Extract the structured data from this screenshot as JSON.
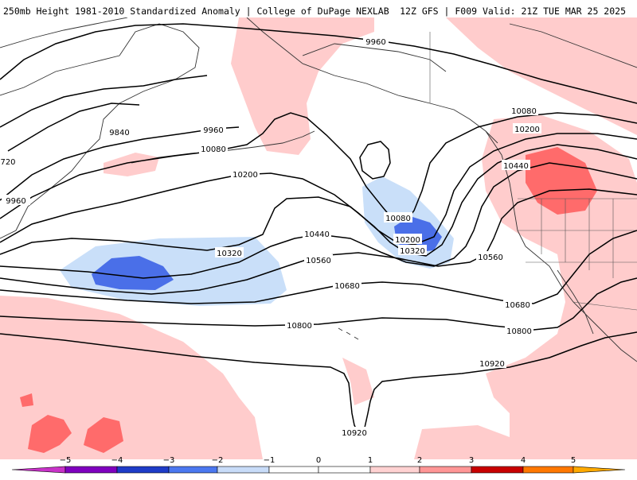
{
  "header": {
    "title": "250mb Height 1981-2010 Standardized Anomaly | College of DuPage NEXLAB",
    "run_info": "12Z GFS | F009 Valid: 21Z TUE MAR 25 2025"
  },
  "contour_labels": [
    "9960",
    "9840",
    "9960",
    "10080",
    "10200",
    "10320",
    "10440",
    "10560",
    "10680",
    "10800",
    "10920",
    "720",
    "9960",
    "10080",
    "10200",
    "10080",
    "10200",
    "10320",
    "10440",
    "10560",
    "10680",
    "10800",
    "10920",
    "10920"
  ],
  "colorbar": {
    "ticks": [
      "−5",
      "−4",
      "−3",
      "−2",
      "−1",
      "0",
      "1",
      "2",
      "3",
      "4",
      "5"
    ],
    "colors": {
      "m5": "#c832c8",
      "m4": "#7f00bf",
      "m3": "#1e3cc8",
      "m2": "#4b78f0",
      "m1": "#c8dcf8",
      "z0": "#ffffff",
      "p1": "#ffd2d2",
      "p2": "#ff9696",
      "p3": "#c80000",
      "p4": "#ff7800",
      "p5": "#ffaa00"
    }
  },
  "map_colors": {
    "pos1": "#ffcccc",
    "pos2": "#ff6b6b",
    "neg1": "#c9dff9",
    "neg2": "#4a6fe8",
    "contour": "#000000",
    "coast": "#333333"
  }
}
